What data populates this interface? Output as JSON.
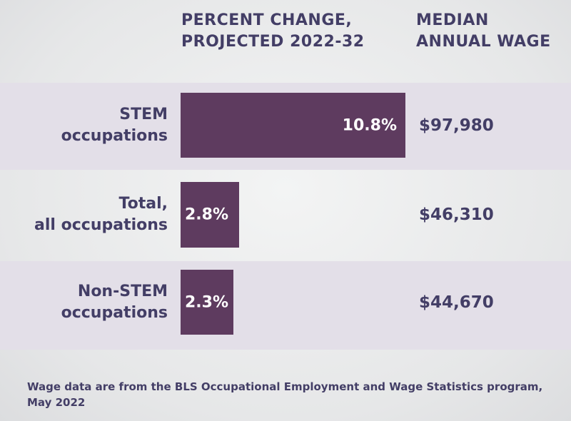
{
  "header": {
    "percent_change_line1": "PERCENT CHANGE,",
    "percent_change_line2": "PROJECTED 2022-32",
    "wage_line1": "MEDIAN",
    "wage_line2": "ANNUAL WAGE"
  },
  "colors": {
    "bar": "#5e3b5f",
    "text": "#433e66",
    "band": "#e3dfe8"
  },
  "chart_data": {
    "type": "bar",
    "orientation": "horizontal",
    "categories": [
      "STEM occupations",
      "Total, all occupations",
      "Non-STEM occupations"
    ],
    "category_label_lines": [
      [
        "STEM",
        "occupations"
      ],
      [
        "Total,",
        "all occupations"
      ],
      [
        "Non-STEM",
        "occupations"
      ]
    ],
    "values": [
      10.8,
      2.8,
      2.3
    ],
    "value_labels": [
      "10.8%",
      "2.8%",
      "2.3%"
    ],
    "median_annual_wage": [
      "$97,980",
      "$46,310",
      "$44,670"
    ],
    "xlim": [
      0,
      10.8
    ],
    "grid": false
  },
  "footnote": "Wage data are from the BLS Occupational Employment and Wage Statistics program, May 2022"
}
